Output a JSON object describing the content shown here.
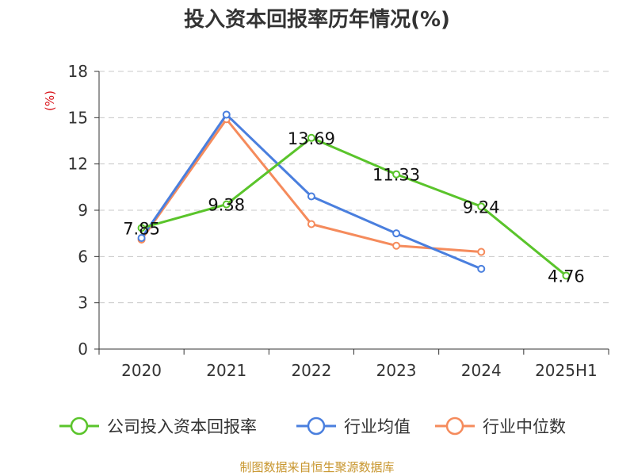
{
  "chart_data": {
    "type": "line",
    "title": "投入资本回报率历年情况(%)",
    "ylabel": "(%)",
    "xlabel": "",
    "categories": [
      "2020",
      "2021",
      "2022",
      "2023",
      "2024",
      "2025H1"
    ],
    "ylim": [
      0,
      18
    ],
    "yticks": [
      "0",
      "3",
      "6",
      "9",
      "12",
      "15",
      "18"
    ],
    "grid": true,
    "legend_position": "bottom",
    "series": [
      {
        "name": "公司投入资本回报率",
        "color": "#5ac42b",
        "values": [
          7.85,
          9.38,
          13.69,
          11.33,
          9.24,
          4.76
        ],
        "labels": [
          "7.85",
          "9.38",
          "13.69",
          "11.33",
          "9.24",
          "4.76"
        ]
      },
      {
        "name": "行业均值",
        "color": "#4a7fde",
        "values": [
          7.2,
          15.2,
          9.9,
          7.5,
          5.2,
          null
        ]
      },
      {
        "name": "行业中位数",
        "color": "#f58b5c",
        "values": [
          7.1,
          14.9,
          8.1,
          6.7,
          6.3,
          null
        ]
      }
    ]
  },
  "footer": {
    "source": "制图数据来自恒生聚源数据库"
  }
}
